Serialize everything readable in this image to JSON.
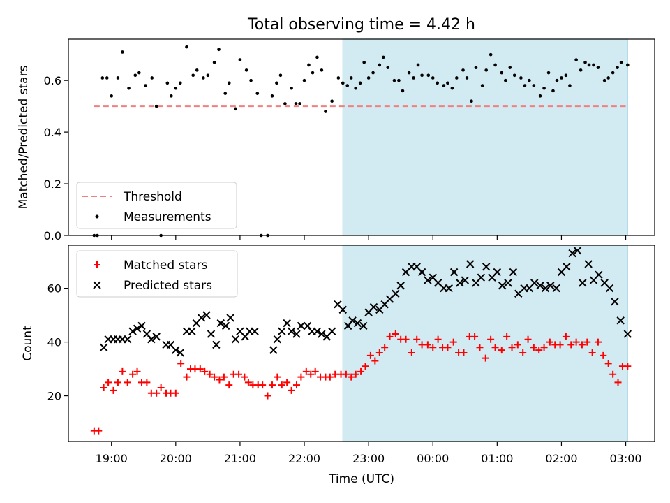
{
  "chart_data": {
    "title": "Total observing time = 4.42 h",
    "xlabel": "Time (UTC)",
    "x_ticks": [
      "19:00",
      "20:00",
      "21:00",
      "22:00",
      "23:00",
      "00:00",
      "01:00",
      "02:00",
      "03:00"
    ],
    "x_tick_hours": [
      19,
      20,
      21,
      22,
      23,
      24,
      25,
      26,
      27
    ],
    "xlim": [
      18.33,
      27.45
    ],
    "shaded_region": {
      "start": 22.6,
      "end": 27.03,
      "color": "#add8e6"
    },
    "panels": [
      {
        "type": "scatter",
        "ylabel": "Matched/Predicted stars",
        "ylim": [
          0,
          0.76
        ],
        "y_ticks": [
          0.0,
          0.2,
          0.4,
          0.6
        ],
        "y_tick_labels": [
          "0.0",
          "0.2",
          "0.4",
          "0.6"
        ],
        "threshold": {
          "name": "Threshold",
          "value": 0.5,
          "x_range": [
            18.73,
            27.0
          ],
          "color": "#f08080"
        },
        "legend": [
          "Threshold",
          "Measurements"
        ],
        "legend_position": "lower-left",
        "series": [
          {
            "name": "Measurements",
            "marker": "dot",
            "color": "#000000",
            "x": [
              18.73,
              18.78,
              18.86,
              18.93,
              19.0,
              19.1,
              19.17,
              19.27,
              19.37,
              19.43,
              19.53,
              19.63,
              19.7,
              19.77,
              19.87,
              19.93,
              20.0,
              20.07,
              20.17,
              20.27,
              20.33,
              20.43,
              20.5,
              20.6,
              20.67,
              20.77,
              20.83,
              20.93,
              21.0,
              21.1,
              21.17,
              21.27,
              21.33,
              21.43,
              21.5,
              21.57,
              21.63,
              21.7,
              21.8,
              21.87,
              21.93,
              22.0,
              22.07,
              22.13,
              22.2,
              22.27,
              22.33,
              22.43,
              22.53,
              22.6,
              22.67,
              22.73,
              22.8,
              22.87,
              22.93,
              23.0,
              23.07,
              23.17,
              23.23,
              23.3,
              23.4,
              23.47,
              23.53,
              23.63,
              23.7,
              23.77,
              23.83,
              23.93,
              24.0,
              24.07,
              24.17,
              24.23,
              24.3,
              24.37,
              24.47,
              24.53,
              24.6,
              24.67,
              24.77,
              24.83,
              24.9,
              24.97,
              25.07,
              25.13,
              25.2,
              25.27,
              25.37,
              25.43,
              25.5,
              25.57,
              25.67,
              25.73,
              25.8,
              25.87,
              25.93,
              26.0,
              26.07,
              26.13,
              26.23,
              26.3,
              26.37,
              26.43,
              26.5,
              26.57,
              26.67,
              26.73,
              26.8,
              26.87,
              26.93,
              27.03
            ],
            "y": [
              0.0,
              0.0,
              0.61,
              0.61,
              0.54,
              0.61,
              0.71,
              0.57,
              0.62,
              0.63,
              0.58,
              0.61,
              0.5,
              0.0,
              0.59,
              0.54,
              0.57,
              0.59,
              0.73,
              0.62,
              0.64,
              0.61,
              0.62,
              0.67,
              0.72,
              0.55,
              0.59,
              0.49,
              0.68,
              0.64,
              0.6,
              0.55,
              0.0,
              0.0,
              0.54,
              0.59,
              0.62,
              0.51,
              0.57,
              0.51,
              0.51,
              0.6,
              0.66,
              0.63,
              0.69,
              0.64,
              0.48,
              0.52,
              0.61,
              0.59,
              0.58,
              0.61,
              0.57,
              0.59,
              0.67,
              0.61,
              0.63,
              0.66,
              0.69,
              0.65,
              0.6,
              0.6,
              0.56,
              0.63,
              0.61,
              0.66,
              0.62,
              0.62,
              0.61,
              0.59,
              0.58,
              0.59,
              0.57,
              0.61,
              0.64,
              0.61,
              0.52,
              0.65,
              0.58,
              0.64,
              0.7,
              0.66,
              0.63,
              0.6,
              0.65,
              0.62,
              0.61,
              0.58,
              0.6,
              0.58,
              0.54,
              0.57,
              0.63,
              0.56,
              0.6,
              0.61,
              0.62,
              0.58,
              0.68,
              0.64,
              0.67,
              0.66,
              0.66,
              0.65,
              0.6,
              0.61,
              0.63,
              0.65,
              0.67,
              0.66
            ]
          }
        ]
      },
      {
        "type": "scatter",
        "ylabel": "Count",
        "ylim": [
          3,
          76
        ],
        "y_ticks": [
          20,
          40,
          60
        ],
        "y_tick_labels": [
          "20",
          "40",
          "60"
        ],
        "legend": [
          "Matched stars",
          "Predicted stars"
        ],
        "legend_position": "top-left",
        "series": [
          {
            "name": "Matched stars",
            "marker": "plus",
            "color": "#ff0000",
            "x": [
              18.73,
              18.8,
              18.88,
              18.95,
              19.03,
              19.1,
              19.17,
              19.25,
              19.33,
              19.4,
              19.47,
              19.55,
              19.62,
              19.7,
              19.77,
              19.85,
              19.92,
              20.0,
              20.08,
              20.17,
              20.23,
              20.3,
              20.38,
              20.45,
              20.53,
              20.6,
              20.68,
              20.75,
              20.83,
              20.9,
              20.98,
              21.07,
              21.13,
              21.2,
              21.28,
              21.35,
              21.43,
              21.5,
              21.58,
              21.65,
              21.73,
              21.8,
              21.88,
              21.95,
              22.03,
              22.1,
              22.17,
              22.25,
              22.33,
              22.4,
              22.48,
              22.57,
              22.65,
              22.73,
              22.8,
              22.88,
              22.95,
              23.03,
              23.1,
              23.17,
              23.25,
              23.33,
              23.42,
              23.5,
              23.58,
              23.67,
              23.75,
              23.83,
              23.92,
              24.0,
              24.08,
              24.15,
              24.23,
              24.32,
              24.4,
              24.48,
              24.57,
              24.65,
              24.73,
              24.82,
              24.9,
              24.97,
              25.07,
              25.15,
              25.23,
              25.32,
              25.4,
              25.48,
              25.57,
              25.65,
              25.73,
              25.82,
              25.9,
              25.98,
              26.07,
              26.15,
              26.23,
              26.32,
              26.4,
              26.48,
              26.57,
              26.65,
              26.73,
              26.8,
              26.88,
              26.95,
              27.03
            ],
            "y": [
              7,
              7,
              23,
              25,
              22,
              25,
              29,
              25,
              28,
              29,
              25,
              25,
              21,
              21,
              23,
              21,
              21,
              21,
              32,
              27,
              30,
              30,
              30,
              29,
              28,
              27,
              26,
              27,
              24,
              28,
              28,
              27,
              25,
              24,
              24,
              24,
              20,
              24,
              27,
              24,
              25,
              22,
              24,
              27,
              29,
              28,
              29,
              27,
              27,
              27,
              28,
              28,
              28,
              27,
              28,
              29,
              31,
              35,
              33,
              36,
              38,
              42,
              43,
              41,
              41,
              36,
              41,
              39,
              39,
              38,
              41,
              38,
              38,
              40,
              36,
              36,
              42,
              42,
              38,
              34,
              41,
              38,
              37,
              42,
              38,
              39,
              36,
              41,
              38,
              37,
              38,
              40,
              39,
              39,
              42,
              39,
              40,
              39,
              40,
              36,
              40,
              35,
              32,
              28,
              25,
              31,
              31
            ]
          },
          {
            "name": "Predicted stars",
            "marker": "x",
            "color": "#000000",
            "x": [
              18.88,
              18.95,
              19.03,
              19.1,
              19.17,
              19.25,
              19.33,
              19.4,
              19.47,
              19.55,
              19.62,
              19.7,
              19.85,
              19.92,
              20.0,
              20.07,
              20.17,
              20.25,
              20.32,
              20.4,
              20.48,
              20.55,
              20.63,
              20.7,
              20.78,
              20.85,
              20.93,
              21.0,
              21.08,
              21.15,
              21.23,
              21.52,
              21.58,
              21.65,
              21.73,
              21.8,
              21.88,
              21.95,
              22.05,
              22.12,
              22.2,
              22.27,
              22.35,
              22.43,
              22.52,
              22.6,
              22.68,
              22.75,
              22.83,
              22.92,
              23.0,
              23.08,
              23.17,
              23.25,
              23.33,
              23.42,
              23.5,
              23.58,
              23.67,
              23.75,
              23.83,
              23.92,
              24.0,
              24.08,
              24.17,
              24.25,
              24.33,
              24.42,
              24.5,
              24.58,
              24.67,
              24.75,
              24.83,
              24.92,
              25.0,
              25.08,
              25.17,
              25.25,
              25.33,
              25.42,
              25.5,
              25.58,
              25.67,
              25.75,
              25.83,
              25.92,
              26.0,
              26.08,
              26.17,
              26.25,
              26.33,
              26.42,
              26.5,
              26.58,
              26.67,
              26.75,
              26.83,
              26.92,
              27.03
            ],
            "y": [
              38,
              41,
              41,
              41,
              41,
              41,
              44,
              45,
              46,
              43,
              41,
              42,
              39,
              39,
              37,
              36,
              44,
              44,
              47,
              49,
              50,
              43,
              39,
              47,
              46,
              49,
              41,
              44,
              42,
              44,
              44,
              37,
              41,
              44,
              47,
              44,
              43,
              46,
              46,
              44,
              44,
              43,
              42,
              44,
              54,
              52,
              46,
              48,
              47,
              46,
              51,
              53,
              52,
              54,
              56,
              58,
              61,
              66,
              68,
              68,
              66,
              63,
              64,
              62,
              60,
              60,
              66,
              62,
              63,
              69,
              62,
              64,
              68,
              64,
              66,
              61,
              62,
              66,
              58,
              60,
              60,
              62,
              61,
              60,
              61,
              60,
              66,
              68,
              73,
              74,
              62,
              69,
              63,
              65,
              62,
              60,
              55,
              48,
              43
            ]
          }
        ]
      }
    ]
  }
}
